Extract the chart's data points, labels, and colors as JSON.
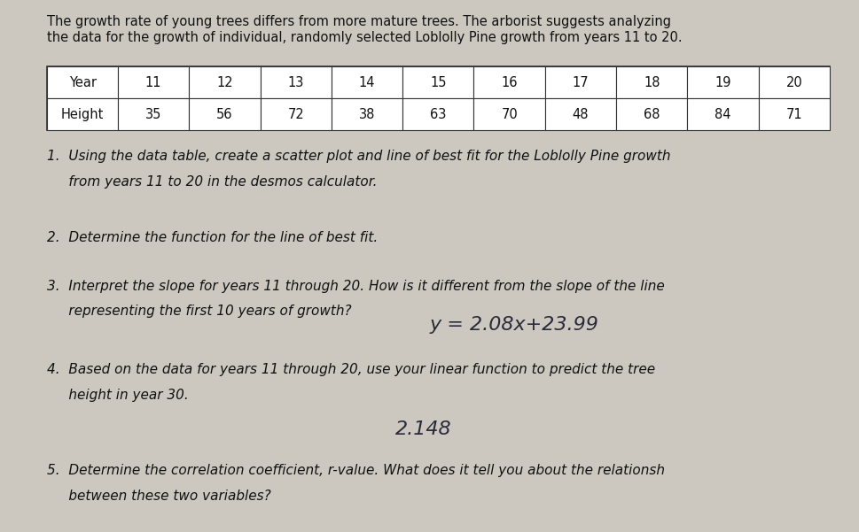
{
  "bg_color": "#ccc8c0",
  "text_color": "#111111",
  "intro_line1": "The growth rate of young trees differs from more mature trees. The arborist suggests analyzing",
  "intro_line2": "the data for the growth of individual, randomly selected Loblolly Pine growth from years 11 to 20.",
  "table_years": [
    11,
    12,
    13,
    14,
    15,
    16,
    17,
    18,
    19,
    20
  ],
  "table_heights": [
    35,
    56,
    72,
    38,
    63,
    70,
    48,
    68,
    84,
    71
  ],
  "q1_line1": "1.  Using the data table, create a scatter plot and line of best fit for the Loblolly Pine growth",
  "q1_line2": "     from years 11 to 20 in the desmos calculator.",
  "q2": "2.  Determine the function for the line of best fit.",
  "q3_line1": "3.  Interpret the slope for years 11 through 20. How is it different from the slope of the line",
  "q3_line2": "     representing the first 10 years of growth?",
  "q4_line1": "4.  Based on the data for years 11 through 20, use your linear function to predict the tree",
  "q4_line2": "     height in year 30.",
  "q5_line1": "5.  Determine the correlation coefficient, r-value. What does it tell you about the relationsh",
  "q5_line2": "     between these two variables?",
  "hw_q3": "y = 2.08x+23.99",
  "hw_q4": "2.148",
  "intro_fontsize": 10.5,
  "q_fontsize": 11.0,
  "hw_fontsize": 16
}
